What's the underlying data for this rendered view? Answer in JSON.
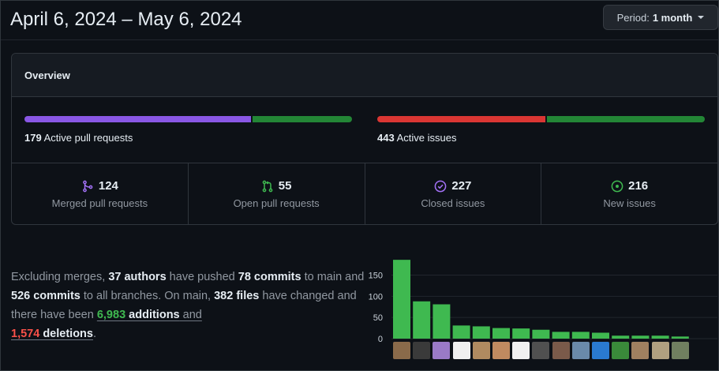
{
  "header": {
    "date_range": "April 6, 2024 – May 6, 2024",
    "period_label": "Period:",
    "period_value": "1 month"
  },
  "overview": {
    "title": "Overview",
    "pull_requests": {
      "count": "179",
      "label": "Active pull requests",
      "merged_fraction": 0.6927,
      "colors": [
        "#8957e5",
        "#238636"
      ]
    },
    "issues": {
      "count": "443",
      "label": "Active issues",
      "closed_fraction": 0.5124,
      "colors": [
        "#da3633",
        "#238636"
      ]
    },
    "stats": [
      {
        "icon": "merged-pr-icon",
        "value": "124",
        "label": "Merged pull requests",
        "color": "#a371f7"
      },
      {
        "icon": "open-pr-icon",
        "value": "55",
        "label": "Open pull requests",
        "color": "#3fb950"
      },
      {
        "icon": "closed-issue-icon",
        "value": "227",
        "label": "Closed issues",
        "color": "#a371f7"
      },
      {
        "icon": "new-issue-icon",
        "value": "216",
        "label": "New issues",
        "color": "#3fb950"
      }
    ]
  },
  "summary": {
    "t1": "Excluding merges, ",
    "authors": "37 authors",
    "t2": " have pushed ",
    "commits_main": "78 commits",
    "t3": " to main and ",
    "commits_all": "526 commits",
    "t4": " to all branches. On main, ",
    "files": "382 files",
    "t5": " have changed and there have been ",
    "additions_num": "6,983",
    "additions_word": " additions",
    "t6": " and",
    "deletions_num": "1,574",
    "deletions_word": " deletions",
    "t7": "."
  },
  "chart_data": {
    "type": "bar",
    "values": [
      186,
      88,
      81,
      31,
      29,
      25,
      24,
      21,
      16,
      16,
      14,
      7,
      7,
      7,
      5
    ],
    "yticks": [
      "150",
      "100",
      "50",
      "0"
    ],
    "ylim": [
      0,
      190
    ],
    "bar_color": "#3fb950",
    "avatar_colors": [
      "#8a6a4a",
      "#3a3a3a",
      "#9a7ac7",
      "#f0f0f0",
      "#b08a60",
      "#c08a60",
      "#f0f0f0",
      "#505050",
      "#7a5a4a",
      "#6a8aaa",
      "#2a7ad0",
      "#3a8a3a",
      "#a08060",
      "#b0a080",
      "#708060"
    ]
  }
}
